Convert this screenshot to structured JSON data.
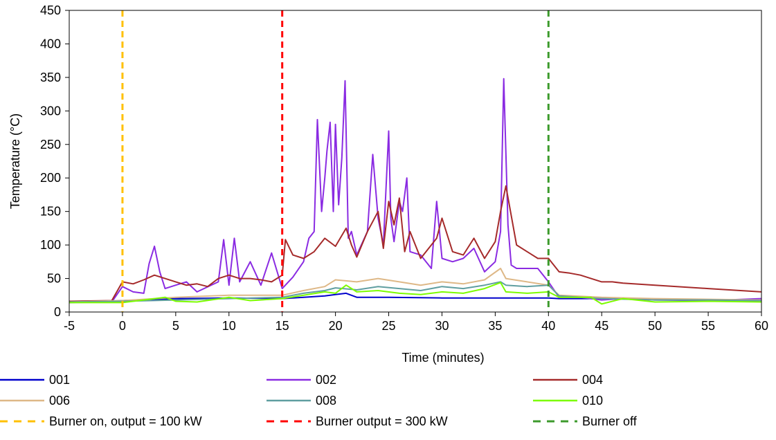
{
  "chart_data": {
    "type": "line",
    "title": "",
    "xlabel": "Time (minutes)",
    "ylabel": "Temperature (°C)",
    "xlim": [
      -5,
      60
    ],
    "ylim": [
      0,
      450
    ],
    "x_ticks": [
      "-5",
      "0",
      "5",
      "10",
      "15",
      "20",
      "25",
      "30",
      "35",
      "40",
      "45",
      "50",
      "55",
      "60"
    ],
    "y_ticks": [
      "0",
      "50",
      "100",
      "150",
      "200",
      "250",
      "300",
      "350",
      "400",
      "450"
    ],
    "grid": false,
    "legend_position": "bottom",
    "series": [
      {
        "name": "001",
        "color": "#0000cc",
        "x": [
          -5,
          0,
          5,
          10,
          15,
          17,
          19,
          20,
          21,
          22,
          25,
          30,
          35,
          40,
          41,
          45,
          50,
          55,
          60
        ],
        "y": [
          14,
          17,
          20,
          21,
          20,
          22,
          24,
          26,
          28,
          22,
          22,
          21,
          21,
          21,
          20,
          20,
          19,
          18,
          17
        ]
      },
      {
        "name": "002",
        "color": "#8a2be2",
        "x": [
          -5,
          -1,
          0,
          1,
          2,
          2.5,
          3,
          3.5,
          4,
          5,
          6,
          7,
          9,
          9.5,
          10,
          10.5,
          11,
          12,
          13,
          14,
          15,
          16,
          17,
          17.5,
          18,
          18.3,
          18.7,
          19,
          19.2,
          19.5,
          19.8,
          20,
          20.3,
          20.6,
          20.9,
          21.2,
          21.5,
          22,
          23,
          23.5,
          24,
          24.5,
          25,
          25.2,
          25.5,
          26,
          26.3,
          26.7,
          27,
          28,
          29,
          29.5,
          30,
          31,
          32,
          33,
          34,
          35,
          35.5,
          35.8,
          36.2,
          36.5,
          37,
          38,
          39,
          40,
          41,
          43,
          45,
          47,
          50,
          55,
          60
        ],
        "y": [
          14,
          15,
          38,
          30,
          28,
          72,
          98,
          60,
          35,
          40,
          45,
          30,
          45,
          108,
          40,
          110,
          45,
          75,
          40,
          88,
          35,
          52,
          75,
          110,
          120,
          287,
          150,
          200,
          240,
          283,
          150,
          280,
          160,
          230,
          345,
          110,
          120,
          85,
          120,
          235,
          140,
          100,
          270,
          140,
          105,
          165,
          150,
          200,
          90,
          85,
          65,
          165,
          80,
          75,
          80,
          95,
          60,
          75,
          120,
          348,
          130,
          70,
          65,
          65,
          65,
          45,
          22,
          22,
          18,
          20,
          18,
          17,
          20
        ]
      },
      {
        "name": "004",
        "color": "#a52a2a",
        "x": [
          -5,
          -1,
          0,
          1,
          2,
          3,
          4,
          5,
          6,
          7,
          8,
          9,
          10,
          11,
          12,
          13,
          14,
          15,
          15.3,
          16,
          17,
          18,
          19,
          20,
          21,
          21.5,
          22,
          23,
          24,
          24.5,
          25,
          25.5,
          26,
          26.5,
          27,
          28,
          29,
          29.5,
          30,
          31,
          32,
          33,
          34,
          35,
          35.5,
          36,
          37,
          38,
          39,
          40,
          41,
          42,
          43,
          44,
          45,
          46,
          47,
          48,
          50,
          55,
          60
        ],
        "y": [
          16,
          17,
          45,
          42,
          48,
          55,
          50,
          45,
          40,
          42,
          38,
          50,
          55,
          50,
          50,
          48,
          45,
          55,
          108,
          85,
          80,
          90,
          110,
          98,
          125,
          100,
          82,
          120,
          150,
          95,
          165,
          130,
          170,
          90,
          120,
          80,
          100,
          110,
          140,
          90,
          85,
          110,
          80,
          105,
          150,
          188,
          100,
          90,
          80,
          80,
          60,
          58,
          55,
          50,
          45,
          45,
          43,
          42,
          40,
          35,
          30
        ]
      },
      {
        "name": "006",
        "color": "#deb887",
        "x": [
          -5,
          0,
          5,
          10,
          15,
          17,
          19,
          20,
          22,
          24,
          26,
          28,
          30,
          32,
          34,
          35.5,
          36,
          38,
          40,
          41,
          45,
          50,
          55,
          60
        ],
        "y": [
          15,
          17,
          22,
          25,
          25,
          32,
          38,
          48,
          45,
          50,
          45,
          40,
          45,
          42,
          48,
          65,
          50,
          45,
          40,
          25,
          22,
          20,
          19,
          18
        ]
      },
      {
        "name": "008",
        "color": "#5f9ea0",
        "x": [
          -5,
          0,
          5,
          10,
          15,
          17,
          19,
          20,
          22,
          24,
          26,
          28,
          30,
          32,
          34,
          35.5,
          36,
          38,
          40,
          41,
          45,
          50,
          55,
          60
        ],
        "y": [
          15,
          16,
          18,
          20,
          22,
          28,
          32,
          36,
          33,
          38,
          35,
          32,
          38,
          35,
          40,
          45,
          40,
          38,
          40,
          24,
          20,
          18,
          18,
          17
        ]
      },
      {
        "name": "010",
        "color": "#7cfc00",
        "x": [
          -5,
          0,
          2,
          4,
          5,
          7,
          10,
          12,
          15,
          17,
          19,
          20,
          21,
          22,
          24,
          26,
          28,
          30,
          32,
          34,
          35.5,
          36,
          38,
          40,
          41,
          44,
          45,
          47,
          50,
          55,
          60
        ],
        "y": [
          14,
          14,
          18,
          22,
          16,
          15,
          22,
          17,
          20,
          25,
          30,
          28,
          40,
          30,
          32,
          28,
          26,
          30,
          28,
          35,
          44,
          30,
          28,
          30,
          22,
          22,
          12,
          20,
          15,
          16,
          15
        ]
      }
    ],
    "reference_lines": [
      {
        "name": "Burner on, output = 100 kW",
        "x": 0,
        "color": "#ffc000"
      },
      {
        "name": "Burner output = 300 kW",
        "x": 15,
        "color": "#ff0000"
      },
      {
        "name": "Burner off",
        "x": 40,
        "color": "#3c9a2c"
      }
    ]
  }
}
